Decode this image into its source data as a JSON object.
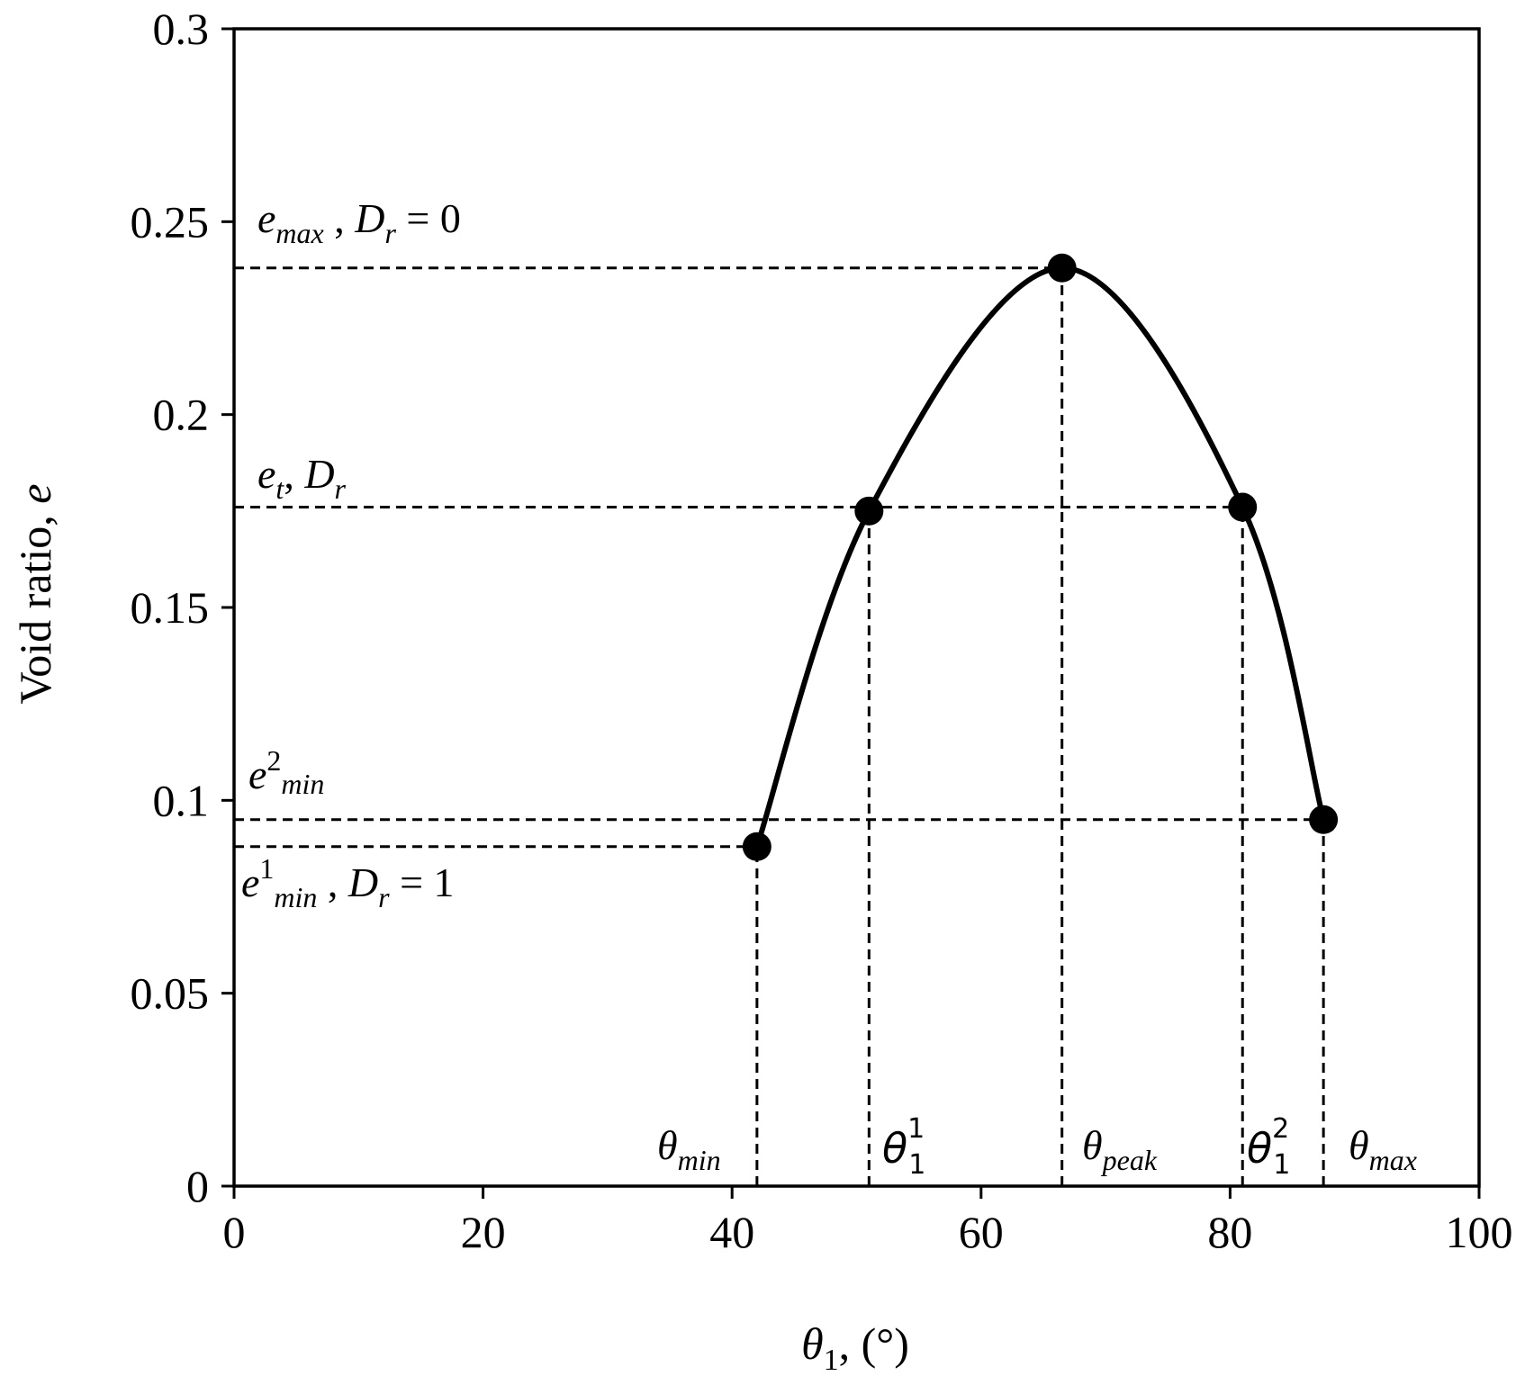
{
  "chart_data": {
    "type": "line",
    "title": "",
    "xlabel": {
      "main": "θ",
      "sub": "1",
      "rest": ", (°)"
    },
    "ylabel": {
      "main": "Void ratio, ",
      "italic": "e"
    },
    "xlim": [
      0,
      100
    ],
    "ylim": [
      0,
      0.3
    ],
    "x_ticks": [
      0,
      20,
      40,
      60,
      80,
      100
    ],
    "x_tick_labels": [
      "0",
      "20",
      "40",
      "60",
      "80",
      "100"
    ],
    "y_ticks": [
      0,
      0.05,
      0.1,
      0.15,
      0.2,
      0.25,
      0.3
    ],
    "y_tick_labels": [
      "0",
      "0.05",
      "0.1",
      "0.15",
      "0.2",
      "0.25",
      "0.3"
    ],
    "grid": false,
    "series": [
      {
        "x": [
          42.0,
          51.0,
          66.5,
          81.0,
          87.5
        ],
        "y": [
          0.088,
          0.175,
          0.238,
          0.176,
          0.095
        ]
      }
    ],
    "reference_lines": {
      "horizontal": [
        {
          "y": 0.238,
          "x_end": 66.5
        },
        {
          "y": 0.176,
          "x_end": 81.0
        },
        {
          "y": 0.095,
          "x_end": 87.5
        },
        {
          "y": 0.088,
          "x_end": 42.0
        }
      ],
      "vertical": [
        {
          "x": 42.0,
          "y_top": 0.088
        },
        {
          "x": 51.0,
          "y_top": 0.175
        },
        {
          "x": 66.5,
          "y_top": 0.238
        },
        {
          "x": 81.0,
          "y_top": 0.176
        },
        {
          "x": 87.5,
          "y_top": 0.095
        }
      ]
    },
    "annotations": {
      "e_max": {
        "e": "e",
        "sub": "max",
        "sep": " , ",
        "D": "D",
        "Dsub": "r",
        "eq": " = 0"
      },
      "e_t": {
        "e": "e",
        "sub": "t",
        "sep": ", ",
        "D": "D",
        "Dsub": "r"
      },
      "e2_min": {
        "e": "e",
        "sup": "2",
        "sub": "min"
      },
      "e1_min": {
        "e": "e",
        "sup": "1",
        "sub": "min",
        "sep": " , ",
        "D": "D",
        "Dsub": "r",
        "eq": " = 1"
      },
      "theta_min": {
        "theta": "θ",
        "sub": "min"
      },
      "theta_1_1": {
        "theta": "θ",
        "sub": "1",
        "sup": "1"
      },
      "theta_peak": {
        "theta": "θ",
        "sub": "peak"
      },
      "theta_1_2": {
        "theta": "θ",
        "sub": "1",
        "sup": "2"
      },
      "theta_max": {
        "theta": "θ",
        "sub": "max"
      }
    }
  }
}
